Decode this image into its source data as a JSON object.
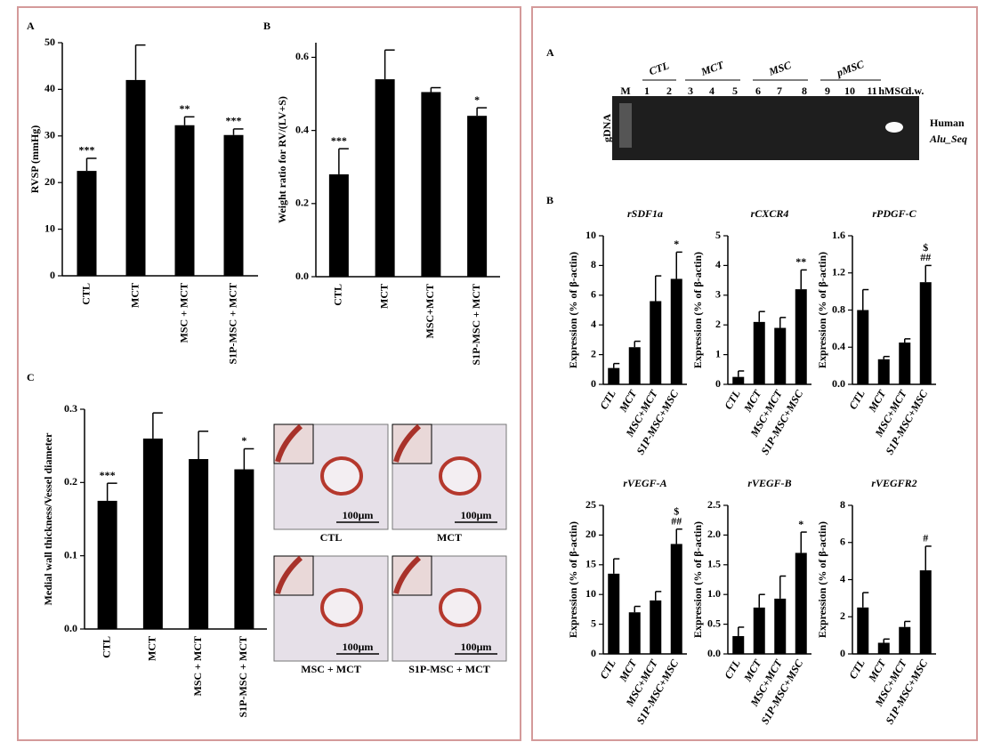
{
  "chart_data": [
    {
      "type": "bar",
      "panel": "A",
      "ylabel": "RVSP (mmHg)",
      "categories": [
        "CTL",
        "MCT",
        "MSC + MCT",
        "S1P-MSC + MCT"
      ],
      "values": [
        22.5,
        42,
        32.3,
        30.2
      ],
      "errors": [
        2.7,
        7.5,
        1.8,
        1.3
      ],
      "annotations": [
        [
          "***"
        ],
        null,
        [
          "**"
        ],
        [
          "***"
        ]
      ],
      "color": "#000000",
      "ylim": [
        0,
        50
      ],
      "yticks": [
        0,
        10,
        20,
        30,
        40,
        50
      ]
    },
    {
      "type": "bar",
      "panel": "B",
      "ylabel": "Weight ratio for RV/(LV+S)",
      "categories": [
        "CTL",
        "MCT",
        "MSC+MCT",
        "S1P-MSC + MCT"
      ],
      "values": [
        0.28,
        0.54,
        0.505,
        0.44
      ],
      "errors": [
        0.07,
        0.08,
        0.012,
        0.022
      ],
      "annotations": [
        [
          "***"
        ],
        null,
        null,
        [
          "*"
        ]
      ],
      "color": "#000000",
      "ylim": [
        0,
        0.64
      ],
      "yticks": [
        {
          "value": 0,
          "label": "0.0"
        },
        0.2,
        0.4,
        0.6
      ]
    },
    {
      "type": "bar",
      "panel": "C",
      "ylabel": "Medial wall thickness/Vessel diameter",
      "categories": [
        "CTL",
        "MCT",
        "MSC + MCT",
        "S1P-MSC + MCT"
      ],
      "values": [
        0.175,
        0.26,
        0.232,
        0.218
      ],
      "errors": [
        0.024,
        0.035,
        0.038,
        0.028
      ],
      "annotations": [
        [
          "***"
        ],
        null,
        null,
        [
          "*"
        ]
      ],
      "color": "#000000",
      "ylim": [
        0,
        0.3
      ],
      "yticks": [
        {
          "value": 0,
          "label": "0.0"
        },
        0.1,
        0.2,
        0.3
      ]
    },
    {
      "type": "bar",
      "title": "rSDF1a",
      "ylabel": "Expression (% of β-actin)",
      "categories": [
        "CTL",
        "MCT",
        "MSC+MCT",
        "S1P-MSC+MSC"
      ],
      "values": [
        1.1,
        2.5,
        5.6,
        7.1
      ],
      "errors": [
        0.3,
        0.4,
        1.7,
        1.8
      ],
      "annotations": [
        null,
        null,
        null,
        [
          "*"
        ]
      ],
      "color": "#000000",
      "ylim": [
        0,
        10
      ],
      "yticks": [
        0,
        2,
        4,
        6,
        8,
        10
      ]
    },
    {
      "type": "bar",
      "title": "rCXCR4",
      "ylabel": "Expression (% of β-actin)",
      "categories": [
        "CTL",
        "MCT",
        "MSC+MCT",
        "S1P-MSC+MSC"
      ],
      "values": [
        0.25,
        2.1,
        1.9,
        3.2
      ],
      "errors": [
        0.2,
        0.35,
        0.35,
        0.65
      ],
      "annotations": [
        null,
        null,
        null,
        [
          "**"
        ]
      ],
      "color": "#000000",
      "ylim": [
        0,
        5
      ],
      "yticks": [
        0,
        1,
        2,
        3,
        4,
        5
      ]
    },
    {
      "type": "bar",
      "title": "rPDGF-C",
      "ylabel": "Expression (% of β-actin)",
      "categories": [
        "CTL",
        "MCT",
        "MSC+MCT",
        "S1P-MSC+MSC"
      ],
      "values": [
        0.8,
        0.27,
        0.45,
        1.1
      ],
      "errors": [
        0.22,
        0.03,
        0.04,
        0.18
      ],
      "annotations": [
        null,
        null,
        null,
        [
          "$",
          "##"
        ]
      ],
      "color": "#000000",
      "ylim": [
        0,
        1.6
      ],
      "yticks": [
        {
          "value": 0,
          "label": "0.0"
        },
        0.4,
        0.8,
        1.2,
        1.6
      ]
    },
    {
      "type": "bar",
      "title": "rVEGF-A",
      "ylabel": "Expression (% of β-actin)",
      "categories": [
        "CTL",
        "MCT",
        "MSC+MCT",
        "S1P-MSC+MSC"
      ],
      "values": [
        13.5,
        7,
        9,
        18.5
      ],
      "errors": [
        2.5,
        1,
        1.5,
        2.5
      ],
      "annotations": [
        null,
        null,
        null,
        [
          "$",
          "##"
        ]
      ],
      "color": "#000000",
      "ylim": [
        0,
        25
      ],
      "yticks": [
        0,
        5,
        10,
        15,
        20,
        25
      ]
    },
    {
      "type": "bar",
      "title": "rVEGF-B",
      "ylabel": "Expression (% of β-actin)",
      "categories": [
        "CTL",
        "MCT",
        "MSC+MCT",
        "S1P-MSC+MSC"
      ],
      "values": [
        0.3,
        0.78,
        0.93,
        1.7
      ],
      "errors": [
        0.15,
        0.22,
        0.38,
        0.35
      ],
      "annotations": [
        null,
        null,
        null,
        [
          "*"
        ]
      ],
      "color": "#000000",
      "ylim": [
        0,
        2.5
      ],
      "yticks": [
        {
          "value": 0,
          "label": "0.0"
        },
        0.5,
        {
          "value": 1,
          "label": "1.0"
        },
        1.5,
        {
          "value": 2,
          "label": "2.0"
        },
        2.5
      ]
    },
    {
      "type": "bar",
      "title": "rVEGFR2",
      "ylabel": "Expression (% of β-actin)",
      "categories": [
        "CTL",
        "MCT",
        "MSC+MCT",
        "S1P-MSC+MSC"
      ],
      "values": [
        2.5,
        0.6,
        1.45,
        4.5
      ],
      "errors": [
        0.8,
        0.2,
        0.3,
        1.3
      ],
      "annotations": [
        null,
        null,
        null,
        [
          "#"
        ]
      ],
      "color": "#000000",
      "ylim": [
        0,
        8
      ],
      "yticks": [
        0,
        2,
        4,
        6,
        8
      ]
    }
  ],
  "gel": {
    "panel": "A",
    "groups": [
      "CTL",
      "MCT",
      "MSC",
      "pMSC"
    ],
    "lanes": [
      "M",
      "1",
      "2",
      "3",
      "4",
      "5",
      "6",
      "7",
      "8",
      "9",
      "10",
      "11",
      "hMSC",
      "d.w."
    ],
    "side_label": "gDNA",
    "band_label": [
      "Human",
      "Alu_Seq"
    ]
  },
  "expression_panel": "B",
  "histology": {
    "captions": [
      "CTL",
      "MCT",
      "MSC + MCT",
      "S1P-MSC + MCT"
    ],
    "scale": "100μm"
  }
}
